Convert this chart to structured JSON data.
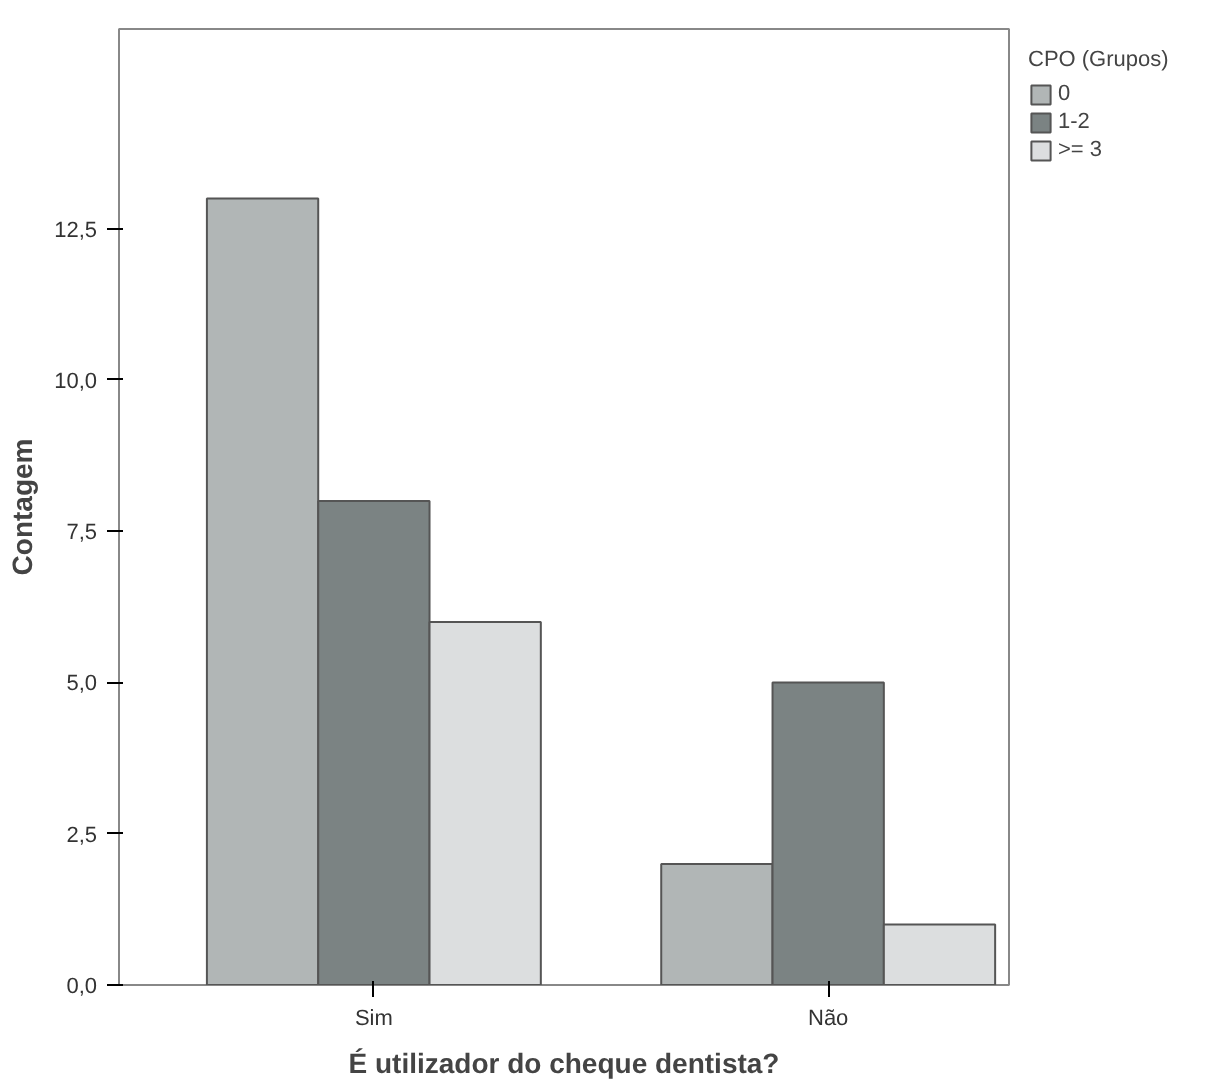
{
  "chart_data": {
    "type": "bar",
    "xlabel": "É utilizador do cheque dentista?",
    "ylabel": "Contagem",
    "legend_title": "CPO (Grupos)",
    "categories": [
      "Sim",
      "Não"
    ],
    "series": [
      {
        "name": "0",
        "color": "#b1b6b6",
        "values": [
          13,
          2
        ]
      },
      {
        "name": "1-2",
        "color": "#7b8383",
        "values": [
          8,
          5
        ]
      },
      {
        "name": ">= 3",
        "color": "#dcdedf",
        "values": [
          6,
          1
        ]
      }
    ],
    "ylim": [
      0,
      15.8
    ],
    "yticks": [
      {
        "value": 0,
        "label": "0,0"
      },
      {
        "value": 2.5,
        "label": "2,5"
      },
      {
        "value": 5,
        "label": "5,0"
      },
      {
        "value": 7.5,
        "label": "7,5"
      },
      {
        "value": 10,
        "label": "10,0"
      },
      {
        "value": 12.5,
        "label": "12,5"
      }
    ],
    "grid": false,
    "legend": "top right"
  }
}
